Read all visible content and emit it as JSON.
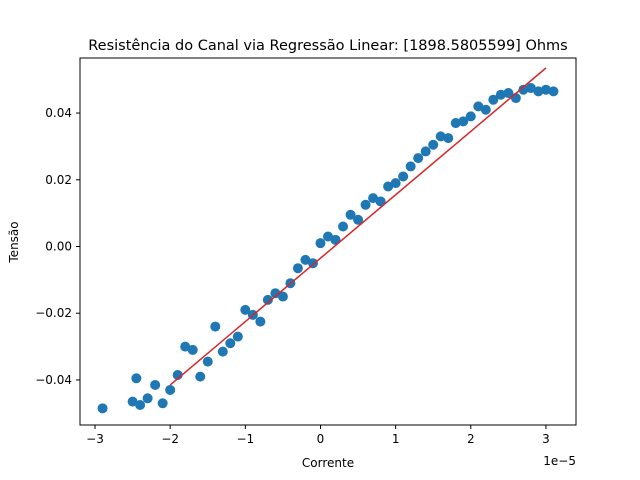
{
  "chart_data": {
    "type": "scatter",
    "title": "Resistência do Canal via Regressão Linear: [1898.5805599] Ohms",
    "xlabel": "Corrente",
    "ylabel": "Tensão",
    "x_offset_label": "1e−5",
    "x_scale": 1e-05,
    "xlim": [
      -3.2e-05,
      3.4e-05
    ],
    "ylim": [
      -0.0535,
      0.0565
    ],
    "x_ticks": [
      -3e-05,
      -2e-05,
      -1e-05,
      0,
      1e-05,
      2e-05,
      3e-05
    ],
    "x_tick_labels": [
      "−3",
      "−2",
      "−1",
      "0",
      "1",
      "2",
      "3"
    ],
    "y_ticks": [
      -0.04,
      -0.02,
      0.0,
      0.02,
      0.04
    ],
    "y_tick_labels": [
      "−0.04",
      "−0.02",
      "0.00",
      "0.02",
      "0.04"
    ],
    "grid": false,
    "series": [
      {
        "kind": "scatter",
        "color": "#1f77b4",
        "points": [
          [
            -2.9e-05,
            -0.0485
          ],
          [
            -2.5e-05,
            -0.0465
          ],
          [
            -2.45e-05,
            -0.0395
          ],
          [
            -2.4e-05,
            -0.0475
          ],
          [
            -2.3e-05,
            -0.0455
          ],
          [
            -2.2e-05,
            -0.0415
          ],
          [
            -2.1e-05,
            -0.047
          ],
          [
            -2e-05,
            -0.043
          ],
          [
            -1.9e-05,
            -0.0385
          ],
          [
            -1.8e-05,
            -0.03
          ],
          [
            -1.7e-05,
            -0.031
          ],
          [
            -1.6e-05,
            -0.039
          ],
          [
            -1.5e-05,
            -0.0345
          ],
          [
            -1.4e-05,
            -0.024
          ],
          [
            -1.3e-05,
            -0.0315
          ],
          [
            -1.2e-05,
            -0.029
          ],
          [
            -1.1e-05,
            -0.027
          ],
          [
            -1e-05,
            -0.019
          ],
          [
            -9e-06,
            -0.0205
          ],
          [
            -8e-06,
            -0.0225
          ],
          [
            -7e-06,
            -0.016
          ],
          [
            -6e-06,
            -0.014
          ],
          [
            -5e-06,
            -0.015
          ],
          [
            -4e-06,
            -0.011
          ],
          [
            -3e-06,
            -0.0065
          ],
          [
            -2e-06,
            -0.004
          ],
          [
            -1e-06,
            -0.005
          ],
          [
            0.0,
            0.001
          ],
          [
            1e-06,
            0.003
          ],
          [
            2e-06,
            0.002
          ],
          [
            3e-06,
            0.006
          ],
          [
            4e-06,
            0.0095
          ],
          [
            5e-06,
            0.008
          ],
          [
            6e-06,
            0.0125
          ],
          [
            7e-06,
            0.0145
          ],
          [
            8e-06,
            0.0135
          ],
          [
            9e-06,
            0.018
          ],
          [
            1e-05,
            0.019
          ],
          [
            1.1e-05,
            0.021
          ],
          [
            1.2e-05,
            0.024
          ],
          [
            1.3e-05,
            0.0265
          ],
          [
            1.4e-05,
            0.0285
          ],
          [
            1.5e-05,
            0.0305
          ],
          [
            1.6e-05,
            0.033
          ],
          [
            1.7e-05,
            0.0325
          ],
          [
            1.8e-05,
            0.037
          ],
          [
            1.9e-05,
            0.0375
          ],
          [
            2e-05,
            0.039
          ],
          [
            2.1e-05,
            0.042
          ],
          [
            2.2e-05,
            0.041
          ],
          [
            2.3e-05,
            0.044
          ],
          [
            2.4e-05,
            0.0455
          ],
          [
            2.5e-05,
            0.046
          ],
          [
            2.6e-05,
            0.0445
          ],
          [
            2.7e-05,
            0.047
          ],
          [
            2.8e-05,
            0.0475
          ],
          [
            2.9e-05,
            0.0465
          ],
          [
            3e-05,
            0.047
          ],
          [
            3.1e-05,
            0.0465
          ]
        ]
      },
      {
        "kind": "line",
        "color": "#d62728",
        "points": [
          [
            -2e-05,
            -0.0415
          ],
          [
            3e-05,
            0.0535
          ]
        ]
      }
    ]
  }
}
